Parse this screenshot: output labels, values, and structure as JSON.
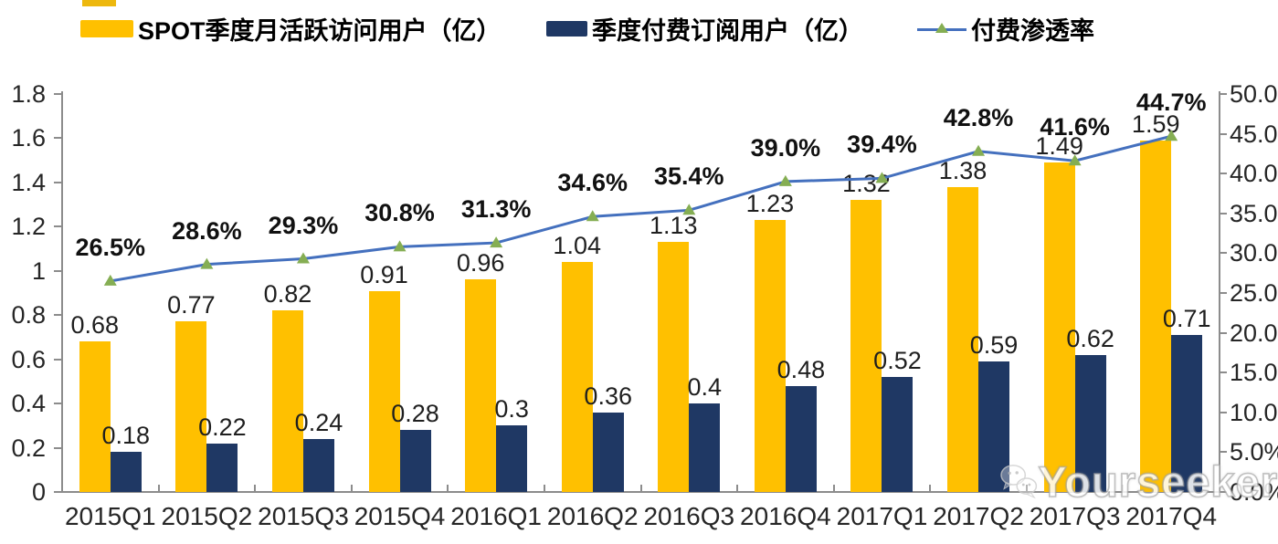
{
  "legend": [
    {
      "label": "SPOT季度月活跃访问用户（亿）",
      "color": "#FFC000",
      "type": "bar"
    },
    {
      "label": "季度付费订阅用户（亿）",
      "color": "#1F3864",
      "type": "bar"
    },
    {
      "label": "付费渗透率",
      "color": "#4470BE",
      "marker_color": "#85AE53",
      "type": "line"
    }
  ],
  "watermark": {
    "text": "Yourseeker",
    "icon": "wechat-icon"
  },
  "chart_data": {
    "type": "combo-bar-line",
    "title": "",
    "categories": [
      "2015Q1",
      "2015Q2",
      "2015Q3",
      "2015Q4",
      "2016Q1",
      "2016Q2",
      "2016Q3",
      "2016Q4",
      "2017Q1",
      "2017Q2",
      "2017Q3",
      "2017Q4"
    ],
    "series": [
      {
        "name": "SPOT季度月活跃访问用户（亿）",
        "type": "bar",
        "axis": "left",
        "color": "#FFC000",
        "values": [
          0.68,
          0.77,
          0.82,
          0.91,
          0.96,
          1.04,
          1.13,
          1.23,
          1.32,
          1.38,
          1.49,
          1.59
        ],
        "labels": [
          "0.68",
          "0.77",
          "0.82",
          "0.91",
          "0.96",
          "1.04",
          "1.13",
          "1.23",
          "1.32",
          "1.38",
          "1.49",
          "1.59"
        ]
      },
      {
        "name": "季度付费订阅用户（亿）",
        "type": "bar",
        "axis": "left",
        "color": "#1F3864",
        "values": [
          0.18,
          0.22,
          0.24,
          0.28,
          0.3,
          0.36,
          0.4,
          0.48,
          0.52,
          0.59,
          0.62,
          0.71
        ],
        "labels": [
          "0.18",
          "0.22",
          "0.24",
          "0.28",
          "0.3",
          "0.36",
          "0.4",
          "0.48",
          "0.52",
          "0.59",
          "0.62",
          "0.71"
        ]
      },
      {
        "name": "付费渗透率",
        "type": "line",
        "axis": "right",
        "color": "#4470BE",
        "marker": "triangle",
        "marker_color": "#85AE53",
        "values": [
          26.5,
          28.6,
          29.3,
          30.8,
          31.3,
          34.6,
          35.4,
          39.0,
          39.4,
          42.8,
          41.6,
          44.7
        ],
        "labels": [
          "26.5%",
          "28.6%",
          "29.3%",
          "30.8%",
          "31.3%",
          "34.6%",
          "35.4%",
          "39.0%",
          "39.4%",
          "42.8%",
          "41.6%",
          "44.7%"
        ]
      }
    ],
    "left_axis": {
      "min": 0,
      "max": 1.8,
      "step": 0.2,
      "tick_labels": [
        "0",
        "0.2",
        "0.4",
        "0.6",
        "0.8",
        "1",
        "1.2",
        "1.4",
        "1.6",
        "1.8"
      ]
    },
    "right_axis": {
      "min": 0,
      "max": 50,
      "step": 5,
      "tick_labels": [
        "0.0%",
        "5.0%",
        "10.0%",
        "15.0%",
        "20.0%",
        "25.0%",
        "30.0%",
        "35.0%",
        "40.0%",
        "45.0%",
        "50.0%"
      ]
    },
    "grid": false,
    "legend_position": "top"
  }
}
